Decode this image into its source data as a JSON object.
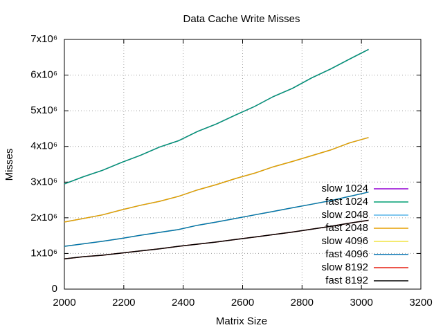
{
  "chart_data": {
    "type": "line",
    "title": "Data Cache Write Misses",
    "x_label": "Matrix Size",
    "y_label": "Misses",
    "xlim": [
      2000,
      3200
    ],
    "xticks": [
      2000,
      2200,
      2400,
      2600,
      2800,
      3000,
      3200
    ],
    "ylim": [
      0,
      7000000
    ],
    "yticks": [
      0,
      {
        "value": 1000000,
        "label": "1x10⁶"
      },
      {
        "value": 2000000,
        "label": "2x10⁶"
      },
      {
        "value": 3000000,
        "label": "3x10⁶"
      },
      {
        "value": 4000000,
        "label": "4x10⁶"
      },
      {
        "value": 5000000,
        "label": "5x10⁶"
      },
      {
        "value": 6000000,
        "label": "6x10⁶"
      },
      {
        "value": 7000000,
        "label": "7x10⁶"
      }
    ],
    "grid": true,
    "legend": "bottom right",
    "x": [
      2000,
      2064,
      2128,
      2192,
      2256,
      2320,
      2384,
      2448,
      2512,
      2576,
      2640,
      2704,
      2768,
      2832,
      2896,
      2960,
      3024
    ],
    "series": [
      {
        "name": "slow 1024",
        "color": "#9400d3",
        "values": [
          2950000,
          3150000,
          3330000,
          3550000,
          3750000,
          3980000,
          4160000,
          4420000,
          4630000,
          4880000,
          5120000,
          5400000,
          5630000,
          5920000,
          6170000,
          6450000,
          6720000
        ]
      },
      {
        "name": "fast 1024",
        "color": "#009e73",
        "values": [
          2950000,
          3150000,
          3330000,
          3550000,
          3750000,
          3980000,
          4160000,
          4420000,
          4630000,
          4880000,
          5120000,
          5400000,
          5630000,
          5920000,
          6170000,
          6450000,
          6720000
        ]
      },
      {
        "name": "slow 2048",
        "color": "#56b4e9",
        "values": [
          1880000,
          1980000,
          2080000,
          2220000,
          2350000,
          2460000,
          2600000,
          2780000,
          2930000,
          3100000,
          3250000,
          3430000,
          3580000,
          3740000,
          3900000,
          4100000,
          4250000
        ]
      },
      {
        "name": "fast 2048",
        "color": "#e69f00",
        "values": [
          1880000,
          1980000,
          2080000,
          2220000,
          2350000,
          2460000,
          2600000,
          2780000,
          2930000,
          3100000,
          3250000,
          3430000,
          3580000,
          3740000,
          3900000,
          4100000,
          4250000
        ]
      },
      {
        "name": "slow 4096",
        "color": "#f0e442",
        "values": [
          1200000,
          1270000,
          1340000,
          1420000,
          1510000,
          1590000,
          1670000,
          1790000,
          1880000,
          1980000,
          2080000,
          2180000,
          2280000,
          2380000,
          2480000,
          2600000,
          2720000
        ]
      },
      {
        "name": "fast 4096",
        "color": "#0072b2",
        "values": [
          1200000,
          1270000,
          1340000,
          1420000,
          1510000,
          1590000,
          1670000,
          1790000,
          1880000,
          1980000,
          2080000,
          2180000,
          2280000,
          2380000,
          2480000,
          2600000,
          2720000
        ]
      },
      {
        "name": "slow 8192",
        "color": "#e51e10",
        "values": [
          850000,
          910000,
          950000,
          1010000,
          1070000,
          1130000,
          1200000,
          1260000,
          1320000,
          1390000,
          1460000,
          1530000,
          1600000,
          1680000,
          1760000,
          1850000,
          1930000
        ]
      },
      {
        "name": "fast 8192",
        "color": "#000000",
        "values": [
          850000,
          910000,
          950000,
          1010000,
          1070000,
          1130000,
          1200000,
          1260000,
          1320000,
          1390000,
          1460000,
          1530000,
          1600000,
          1680000,
          1760000,
          1850000,
          1930000
        ]
      }
    ]
  }
}
